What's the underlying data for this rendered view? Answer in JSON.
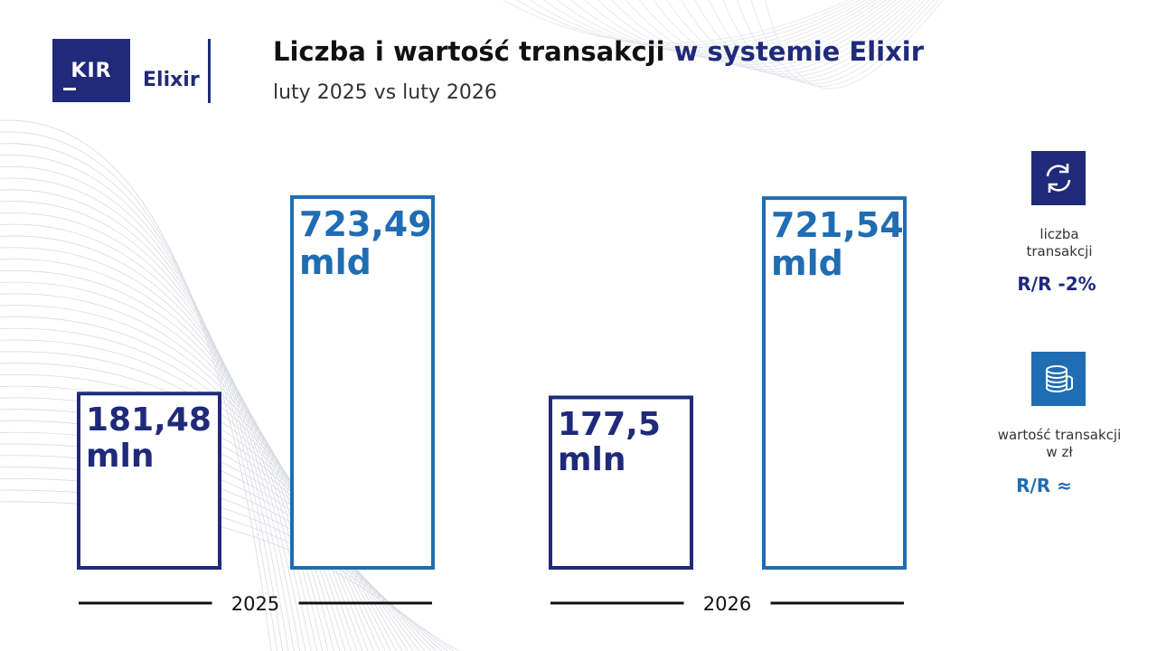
{
  "header": {
    "logo_text": "KIR",
    "brand": "Elixir",
    "title_main": "Liczba i wartość transakcji",
    "title_accent": "w systemie Elixir",
    "subtitle": "luty 2025 vs luty 2026"
  },
  "colors": {
    "navy": "#1f2a7a",
    "blue": "#1f6db3"
  },
  "chart_data": {
    "type": "bar",
    "title": "Liczba i wartość transakcji w systemie Elixir",
    "subtitle": "luty 2025 vs luty 2026",
    "categories": [
      "2025",
      "2026"
    ],
    "series": [
      {
        "name": "liczba transakcji",
        "unit": "mln",
        "values": [
          181.48,
          177.5
        ],
        "labels": [
          "181,48",
          "177,5"
        ],
        "color": "#1f2a7a"
      },
      {
        "name": "wartość transakcji w zł",
        "unit": "mld",
        "values": [
          723.49,
          721.54
        ],
        "labels": [
          "723,49",
          "721,54"
        ],
        "color": "#1f6db3"
      }
    ]
  },
  "sidebar": {
    "count": {
      "icon": "exchange-arrows-icon",
      "caption_line1": "liczba",
      "caption_line2": "transakcji",
      "value": "R/R -2%"
    },
    "value": {
      "icon": "coin-stack-icon",
      "caption_line1": "wartość transakcji",
      "caption_line2": "w zł",
      "value": "R/R ≈"
    }
  }
}
